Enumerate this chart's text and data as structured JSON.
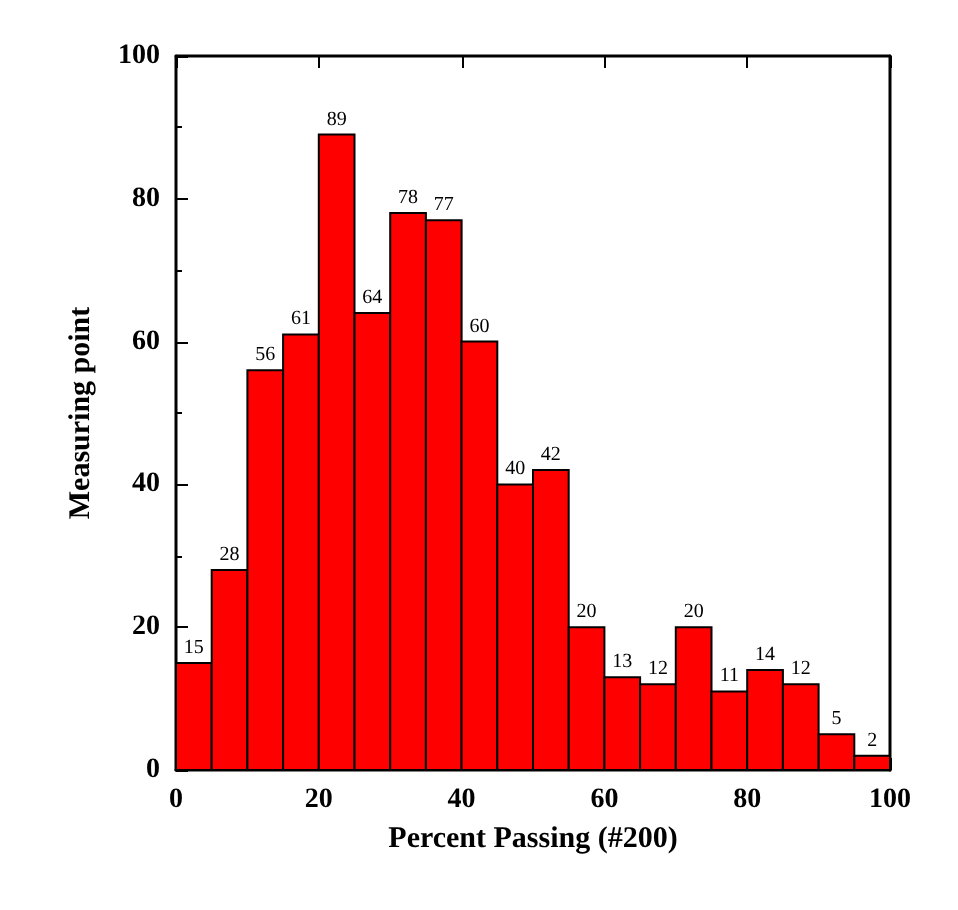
{
  "chart_data": {
    "type": "histogram",
    "xlabel": "Percent Passing (#200)",
    "ylabel": "Measuring point",
    "bins": [
      0,
      5,
      10,
      15,
      20,
      25,
      30,
      35,
      40,
      45,
      50,
      55,
      60,
      65,
      70,
      75,
      80,
      85,
      90,
      95,
      100
    ],
    "values": [
      15,
      28,
      56,
      61,
      89,
      64,
      78,
      77,
      60,
      40,
      42,
      20,
      13,
      12,
      20,
      11,
      14,
      12,
      5,
      2
    ],
    "color": "#ff0000",
    "data_labels": true,
    "grid": false,
    "xlim": [
      0,
      100
    ],
    "xticks": [
      0,
      20,
      40,
      60,
      80,
      100
    ],
    "ylim": [
      0,
      100
    ],
    "yticks": [
      0,
      20,
      40,
      60,
      80,
      100
    ]
  }
}
